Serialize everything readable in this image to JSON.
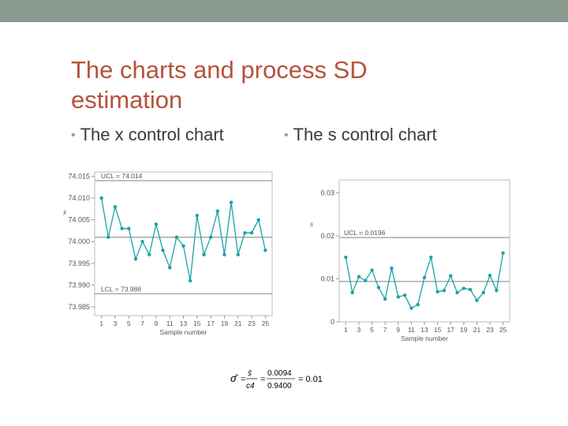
{
  "slide": {
    "title": "The charts and process SD estimation",
    "bullet_left": "The x control chart",
    "bullet_right": "The s control chart"
  },
  "formula": {
    "lhs": "σ̂",
    "frac1_num": "s̄",
    "frac1_den": "c4",
    "frac2_num": "0.0094",
    "frac2_den": "0.9400",
    "result": "= 0.01"
  },
  "chart_data": [
    {
      "type": "line",
      "ylabel": "x̄",
      "xlabel": "Sample number",
      "x_ticks": [
        1,
        3,
        5,
        7,
        9,
        11,
        13,
        15,
        17,
        19,
        21,
        23,
        25
      ],
      "y_ticks": [
        74.015,
        74.01,
        74.005,
        74.0,
        73.995,
        73.99,
        73.985
      ],
      "y_tick_labels": [
        "74.015",
        "74.010",
        "74.005",
        "74.000",
        "73.995",
        "73.990",
        "73.985"
      ],
      "ylim": [
        73.983,
        74.016
      ],
      "xlim": [
        0,
        26
      ],
      "control_limits": {
        "ucl": 74.014,
        "ucl_label": "UCL = 74.014",
        "center": 74.001,
        "lcl": 73.988,
        "lcl_label": "LCL = 73.988"
      },
      "series": [
        {
          "x": [
            1,
            2,
            3,
            4,
            5,
            6,
            7,
            8,
            9,
            10,
            11,
            12,
            13,
            14,
            15,
            16,
            17,
            18,
            19,
            20,
            21,
            22,
            23,
            24,
            25
          ],
          "values": [
            74.01,
            74.001,
            74.008,
            74.003,
            74.003,
            73.996,
            74.0,
            73.997,
            74.004,
            73.998,
            73.994,
            74.001,
            73.999,
            73.991,
            74.006,
            73.997,
            74.001,
            74.007,
            73.997,
            74.009,
            73.997,
            74.002,
            74.002,
            74.005,
            73.998
          ]
        }
      ]
    },
    {
      "type": "line",
      "ylabel": "s",
      "xlabel": "Sample number",
      "x_ticks": [
        1,
        3,
        5,
        7,
        9,
        11,
        13,
        15,
        17,
        19,
        21,
        23,
        25
      ],
      "y_ticks": [
        0.03,
        0.02,
        0.01,
        0
      ],
      "y_tick_labels": [
        "0.03",
        "0.02",
        "0.01",
        "0"
      ],
      "ylim": [
        0,
        0.033
      ],
      "xlim": [
        0,
        26
      ],
      "control_limits": {
        "ucl": 0.0196,
        "ucl_label": "UCL = 0.0196",
        "center": 0.0094
      },
      "series": [
        {
          "x": [
            1,
            2,
            3,
            4,
            5,
            6,
            7,
            8,
            9,
            10,
            11,
            12,
            13,
            14,
            15,
            16,
            17,
            18,
            19,
            20,
            21,
            22,
            23,
            24,
            25
          ],
          "values": [
            0.015,
            0.0068,
            0.0105,
            0.0096,
            0.012,
            0.008,
            0.0053,
            0.0125,
            0.0058,
            0.0062,
            0.0032,
            0.004,
            0.0103,
            0.015,
            0.007,
            0.0073,
            0.0107,
            0.0068,
            0.0078,
            0.0075,
            0.005,
            0.0068,
            0.0108,
            0.0073,
            0.016
          ]
        }
      ]
    }
  ]
}
